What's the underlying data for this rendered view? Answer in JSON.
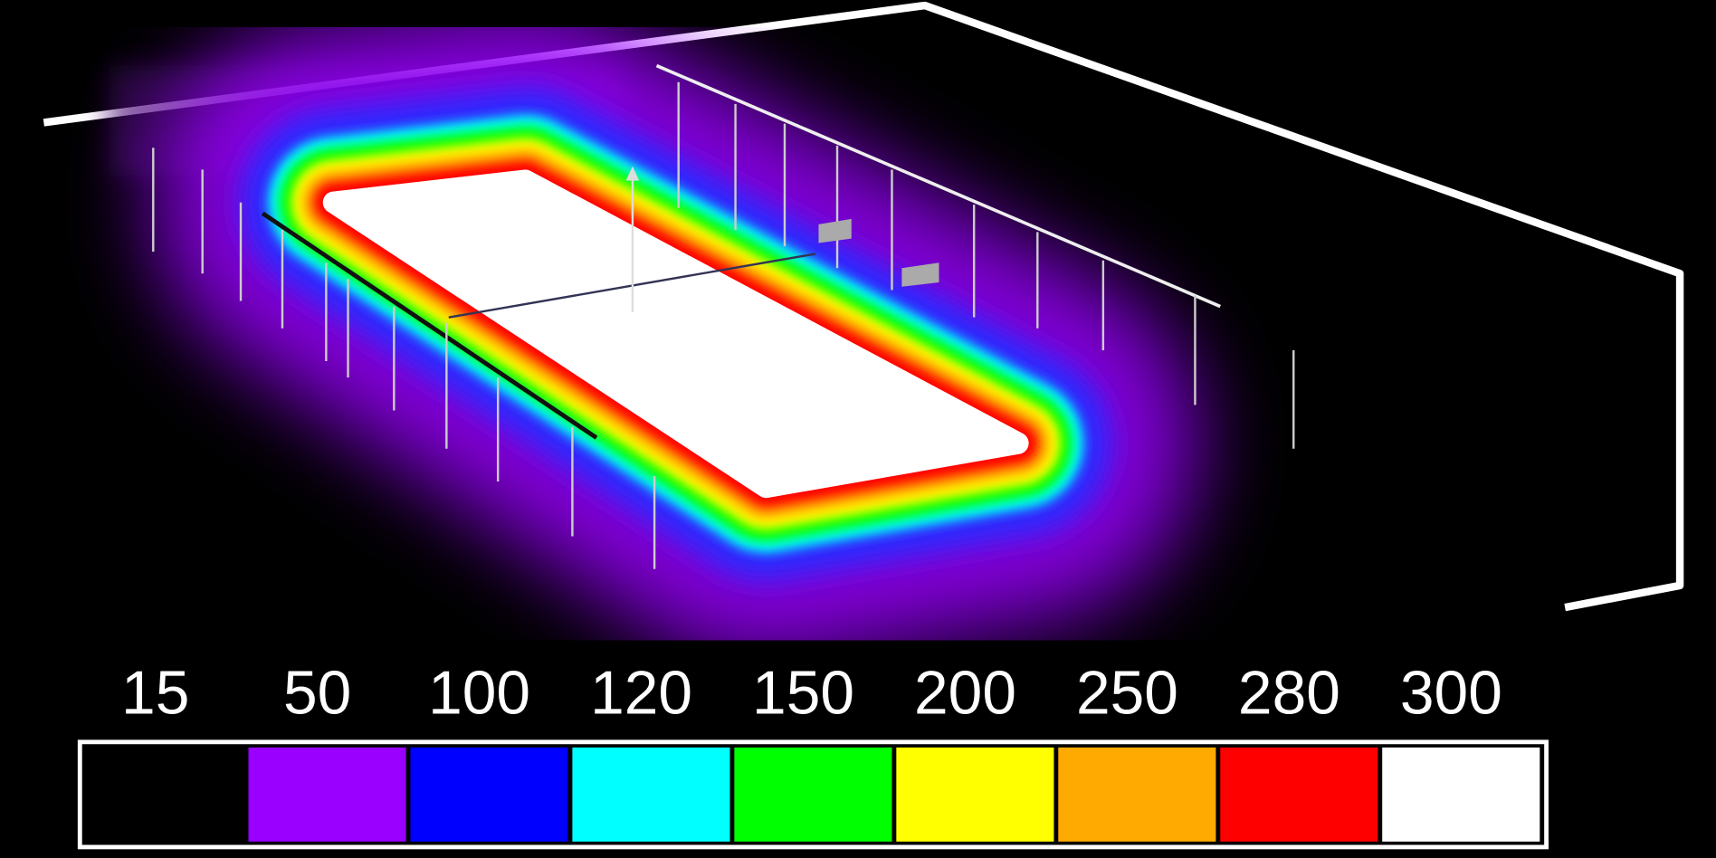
{
  "legend": {
    "items": [
      {
        "label": 15,
        "color": "#000000"
      },
      {
        "label": 50,
        "color": "#9900ff"
      },
      {
        "label": 100,
        "color": "#0000ff"
      },
      {
        "label": 120,
        "color": "#00ffff"
      },
      {
        "label": 150,
        "color": "#00ff00"
      },
      {
        "label": 200,
        "color": "#ffff00"
      },
      {
        "label": 250,
        "color": "#ffaa00"
      },
      {
        "label": 280,
        "color": "#ff0000"
      },
      {
        "label": 300,
        "color": "#ffffff"
      }
    ]
  }
}
